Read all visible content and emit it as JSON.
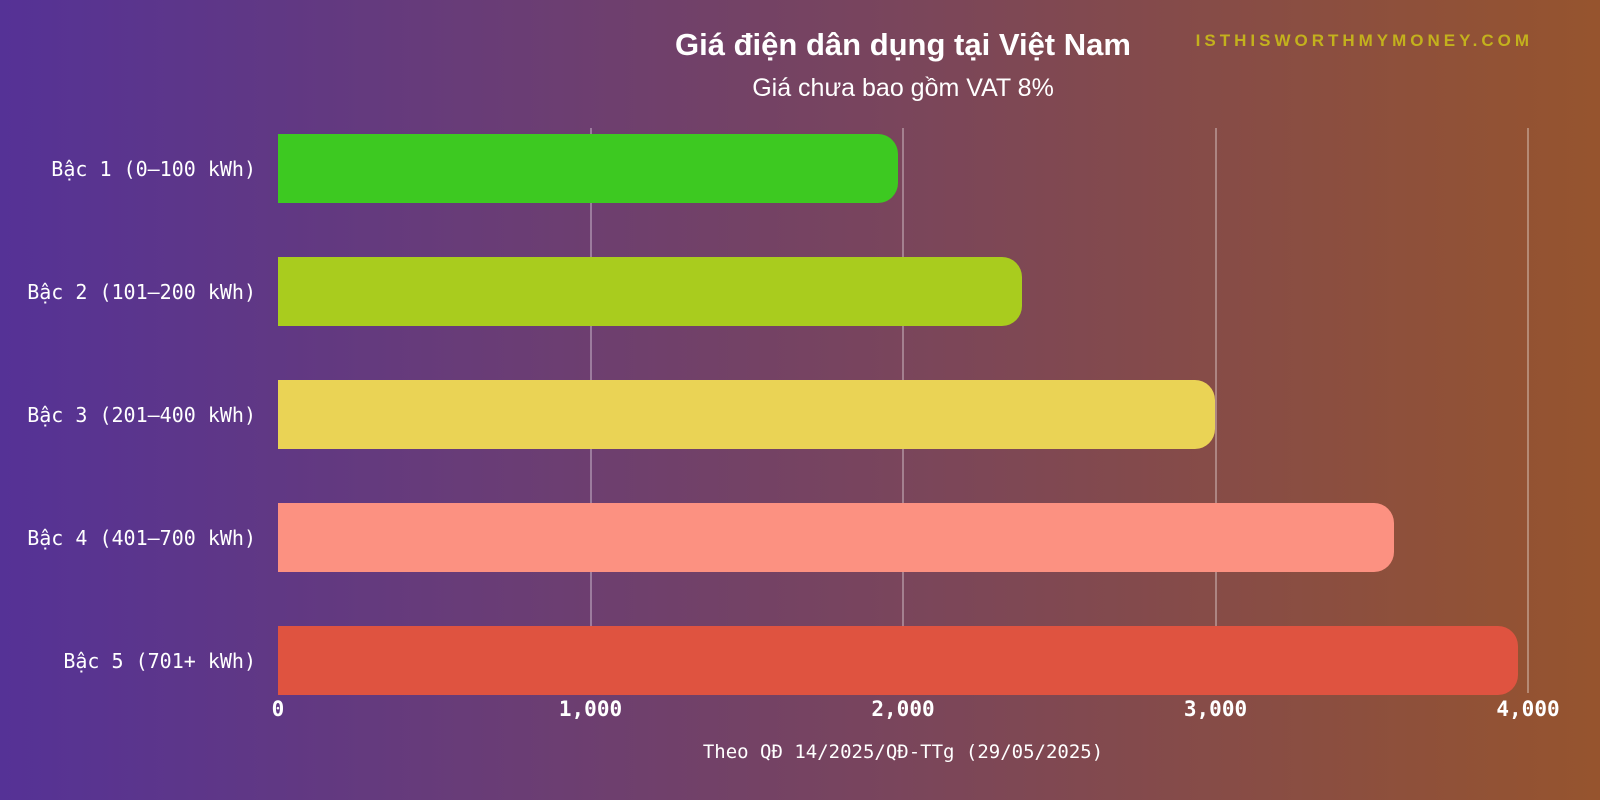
{
  "page": {
    "watermark": "ISTHISWORTHMYMONEY.COM"
  },
  "chart_data": {
    "type": "bar",
    "orientation": "horizontal",
    "title": "Giá điện dân dụng tại Việt Nam",
    "subtitle": "Giá chưa bao gồm VAT 8%",
    "caption": "Theo QĐ 14/2025/QĐ-TTg (29/05/2025)",
    "categories": [
      "Bậc 1 (0–100 kWh)",
      "Bậc 2 (101–200 kWh)",
      "Bậc 3 (201–400 kWh)",
      "Bậc 4 (401–700 kWh)",
      "Bậc 5 (701+ kWh)"
    ],
    "values": [
      1984,
      2380,
      2998,
      3571,
      3967
    ],
    "bar_colors": [
      "#3dc921",
      "#a9cc1e",
      "#ead355",
      "#fc9181",
      "#df5340"
    ],
    "xlim": [
      0,
      4000
    ],
    "xticks": [
      0,
      1000,
      2000,
      3000,
      4000
    ],
    "xtick_labels": [
      "0",
      "1,000",
      "2,000",
      "3,000",
      "4,000"
    ],
    "grid": "vertical-gridlines",
    "legend": "none"
  },
  "colors": {
    "background_left": "#553296",
    "background_right": "#96542e",
    "text": "#ffffff",
    "watermark": "#c3b11d",
    "gridline": "rgba(255,255,255,0.32)"
  }
}
